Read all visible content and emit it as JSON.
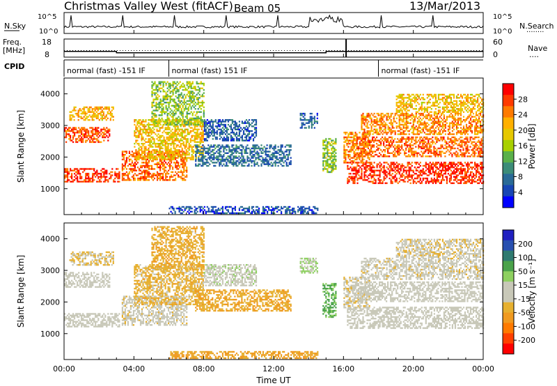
{
  "header": {
    "station": "Christmas Valley West (fitACF)",
    "beam": "Beam 05",
    "date": "13/Mar/2013"
  },
  "chart_data": {
    "type": "heatmap",
    "time_axis": {
      "label": "Time UT",
      "ticks": [
        "00:00",
        "04:00",
        "08:00",
        "12:00",
        "16:00",
        "20:00",
        "00:00"
      ],
      "range_hours": [
        0,
        24
      ]
    },
    "noise_panel": {
      "left_label": "N.Sky",
      "left_ticks": [
        "10^5",
        "10^0"
      ],
      "right_ticks": [
        "10^5",
        "10^0"
      ],
      "right_label": "N.Search",
      "right_legend": "........"
    },
    "freq_panel": {
      "left_label_1": "Freq.",
      "left_label_2": "[MHz]",
      "left_ticks": [
        "18",
        "8"
      ],
      "right_ticks": [
        "60",
        "0"
      ],
      "right_label": "Nave",
      "right_legend": "....",
      "freq_mhz_steps": [
        {
          "t0": 0.0,
          "t1": 3.0,
          "f": 11.2
        },
        {
          "t0": 3.0,
          "t1": 15.0,
          "f": 10.4
        },
        {
          "t0": 15.0,
          "t1": 16.15,
          "f": 11.2
        },
        {
          "t0": 16.15,
          "t1": 24.0,
          "f": 11.2
        }
      ],
      "nave_dotted": 22
    },
    "cpid": {
      "label": "CPID",
      "segments": [
        {
          "start_hour": 0.0,
          "text": "normal (fast) -151 IF"
        },
        {
          "start_hour": 6.0,
          "text": "normal (fast) 151 IF"
        },
        {
          "start_hour": 18.0,
          "text": "normal (fast) -151 IF"
        }
      ]
    },
    "power_panel": {
      "ylabel": "Slant Range [km]",
      "yticks": [
        1000,
        2000,
        3000,
        4000
      ],
      "ylim": [
        180,
        4500
      ],
      "colorbar_label": "Power [dB]",
      "colorbar_ticks": [
        "28",
        "24",
        "20",
        "16",
        "12",
        "8",
        "4"
      ],
      "colorbar_colors": [
        "#ff0000",
        "#ff3a00",
        "#ff7a00",
        "#ffb000",
        "#e6c800",
        "#a8d000",
        "#5ab04a",
        "#3c8c78",
        "#2a6a96",
        "#1846b4",
        "#0000ff"
      ],
      "clim": [
        0,
        30
      ]
    },
    "velocity_panel": {
      "ylabel": "Slant Range [km]",
      "yticks": [
        1000,
        2000,
        3000,
        4000
      ],
      "ylim": [
        180,
        4500
      ],
      "colorbar_label": "Velocity [m s⁻¹]",
      "colorbar_ticks": [
        "200",
        "100",
        "50",
        "15",
        "-15",
        "-50",
        "-100",
        "-200"
      ],
      "colorbar_colors": [
        "#2020c0",
        "#2850b0",
        "#2f7a70",
        "#4aa24a",
        "#8ed060",
        "#c8c8b8",
        "#c8c8b8",
        "#e6b030",
        "#f09a20",
        "#ff7a00",
        "#ff4000",
        "#ff0000"
      ],
      "clim": [
        -250,
        250
      ]
    },
    "scatter_bands": [
      {
        "t0": 0.0,
        "t1": 3.2,
        "r0": 1200,
        "r1": 1650,
        "p": 26,
        "v": 0
      },
      {
        "t0": 0.0,
        "t1": 2.6,
        "r0": 2450,
        "r1": 2950,
        "p": 25,
        "v": 0
      },
      {
        "t0": 0.3,
        "t1": 2.8,
        "r0": 3150,
        "r1": 3600,
        "p": 20,
        "v": -40
      },
      {
        "t0": 3.3,
        "t1": 7.0,
        "r0": 1250,
        "r1": 2200,
        "p": 24,
        "v": -20
      },
      {
        "t0": 4.0,
        "t1": 8.0,
        "r0": 1900,
        "r1": 3200,
        "p": 19,
        "v": -60
      },
      {
        "t0": 5.0,
        "t1": 8.0,
        "r0": 3000,
        "r1": 4400,
        "p": 14,
        "v": -70
      },
      {
        "t0": 7.5,
        "t1": 13.0,
        "r0": 1700,
        "r1": 2400,
        "p": 7,
        "v": -80
      },
      {
        "t0": 8.0,
        "t1": 11.0,
        "r0": 2500,
        "r1": 3200,
        "p": 6,
        "v": 20
      },
      {
        "t0": 13.5,
        "t1": 14.5,
        "r0": 2900,
        "r1": 3400,
        "p": 6,
        "v": 40
      },
      {
        "t0": 14.8,
        "t1": 15.6,
        "r0": 1500,
        "r1": 2600,
        "p": 14,
        "v": 90
      },
      {
        "t0": 16.0,
        "t1": 17.5,
        "r0": 1800,
        "r1": 2800,
        "p": 22,
        "v": -30
      },
      {
        "t0": 16.2,
        "t1": 24.0,
        "r0": 1150,
        "r1": 1850,
        "p": 27,
        "v": 0
      },
      {
        "t0": 16.5,
        "t1": 24.0,
        "r0": 2000,
        "r1": 2650,
        "p": 24,
        "v": 0
      },
      {
        "t0": 17.0,
        "t1": 24.0,
        "r0": 2700,
        "r1": 3400,
        "p": 22,
        "v": -20
      },
      {
        "t0": 19.0,
        "t1": 24.0,
        "r0": 3400,
        "r1": 4000,
        "p": 19,
        "v": -30
      },
      {
        "t0": 6.0,
        "t1": 14.5,
        "r0": 200,
        "r1": 420,
        "p": 5,
        "v": -90
      }
    ]
  }
}
